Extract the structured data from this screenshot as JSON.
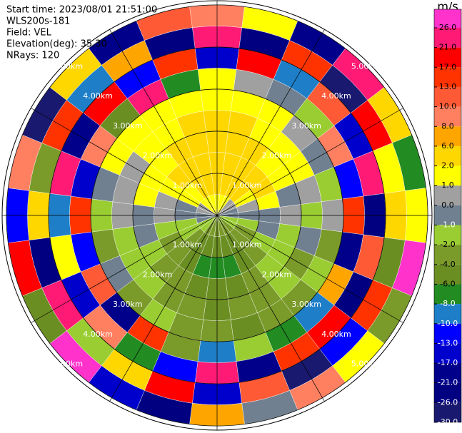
{
  "header": {
    "lines": [
      "Start time: 2023/08/01 21:51:00",
      "WLS200s-181",
      "Field: VEL",
      "Elevation(deg): 35.30",
      "NRays: 120"
    ]
  },
  "chart_data": {
    "type": "ppi",
    "azimuths": [
      0,
      15,
      30,
      45,
      60,
      75,
      90,
      105,
      120,
      135,
      150,
      165,
      180,
      195,
      210,
      225,
      240,
      255,
      270,
      285,
      300,
      315,
      330,
      345
    ],
    "ranges": [
      0.25,
      0.75,
      1.25,
      1.75,
      2.25,
      2.75,
      3.25,
      3.75,
      4.25,
      4.75
    ],
    "rlim": [
      0,
      5.1
    ],
    "values": [
      [
        1.5,
        4,
        5,
        3,
        2.5,
        1.5,
        1.5,
        -15,
        22,
        9
      ],
      [
        1.5,
        4,
        5,
        3,
        2.5,
        1.5,
        0.5,
        18,
        -25,
        1.5
      ],
      [
        1.5,
        3,
        4,
        2.5,
        1.5,
        1.5,
        -0.5,
        -9,
        15,
        -19
      ],
      [
        0.5,
        2.5,
        3,
        1.5,
        1.5,
        0.5,
        -1.5,
        12,
        -28,
        24
      ],
      [
        0.5,
        1.5,
        2.5,
        1.5,
        1.5,
        -0.5,
        9,
        -14,
        19,
        3
      ],
      [
        -0.5,
        0.5,
        1.5,
        -0.5,
        0.5,
        -1.5,
        -11,
        23,
        1.5,
        -7
      ],
      [
        -0.5,
        -0.5,
        -0.5,
        0.5,
        -1.5,
        0.5,
        14,
        -22,
        5,
        1.5
      ],
      [
        -1.5,
        -1.5,
        -0.5,
        -1.5,
        -0.5,
        -3,
        -18,
        11,
        -5,
        27
      ],
      [
        -1.5,
        -3,
        -1.5,
        -1.5,
        -3,
        -1.5,
        7,
        -24,
        16,
        -3
      ],
      [
        -3,
        -3,
        -3,
        -1.5,
        -1.5,
        -3,
        -9,
        20,
        -12,
        1.5
      ],
      [
        -3,
        -5,
        -5,
        -3,
        -3,
        -3,
        -7,
        15,
        -27,
        9
      ],
      [
        -3,
        -5,
        -7,
        -5,
        -3,
        -5,
        -1.5,
        -19,
        12,
        -0.5
      ],
      [
        -3,
        -5,
        -7,
        -5,
        -5,
        -3,
        -9,
        24,
        -15,
        7
      ],
      [
        -3,
        -5,
        -7,
        -5,
        -3,
        -3,
        -3,
        -11,
        19,
        -23
      ],
      [
        -3,
        -5,
        -5,
        -3,
        -3,
        -1.5,
        15,
        -7,
        3,
        -16
      ],
      [
        -1.5,
        -3,
        -3,
        -3,
        -1.5,
        -3,
        -20,
        9,
        -1.5,
        28
      ],
      [
        -1.5,
        -1.5,
        -3,
        -1.5,
        -1.5,
        -0.5,
        11,
        -17,
        23,
        -5
      ],
      [
        -0.5,
        -1.5,
        -1.5,
        -0.5,
        -1.5,
        -3,
        -12,
        1.5,
        -26,
        18
      ],
      [
        -0.5,
        -0.5,
        0.5,
        -0.5,
        0.5,
        -1.5,
        16,
        -9,
        5,
        -13
      ],
      [
        0.5,
        -0.5,
        0.5,
        1.5,
        0.5,
        -0.5,
        -14,
        24,
        -3,
        9
      ],
      [
        0.5,
        1.5,
        1.5,
        1.5,
        0.5,
        1.5,
        8,
        -19,
        13,
        -28
      ],
      [
        1.5,
        1.5,
        3,
        1.5,
        1.5,
        1.5,
        -6,
        18,
        -10,
        3
      ],
      [
        1.5,
        3,
        4,
        3,
        1.5,
        1.5,
        22,
        -13,
        7,
        -21
      ],
      [
        1.5,
        3,
        5,
        3,
        2.5,
        1.5,
        -8,
        14,
        -24,
        11
      ]
    ],
    "range_rings": [
      {
        "value": 1,
        "label": "1.00km"
      },
      {
        "value": 2,
        "label": "2.00km"
      },
      {
        "value": 3,
        "label": "3.00km"
      },
      {
        "value": 4,
        "label": "4.00km"
      },
      {
        "value": 5,
        "label": "5.00km"
      }
    ],
    "colorbar": {
      "label": "m/s",
      "ticks": [
        {
          "value": 26,
          "label": "26.0"
        },
        {
          "value": 21,
          "label": "21.0"
        },
        {
          "value": 17,
          "label": "17.0"
        },
        {
          "value": 13,
          "label": "13.0"
        },
        {
          "value": 10,
          "label": "10.0"
        },
        {
          "value": 8,
          "label": "8.0"
        },
        {
          "value": 6,
          "label": "6.0"
        },
        {
          "value": 2,
          "label": "2.0"
        },
        {
          "value": 1,
          "label": "1.0"
        },
        {
          "value": 0,
          "label": "0.0"
        },
        {
          "value": -1,
          "label": "-1.0"
        },
        {
          "value": -2,
          "label": "-2.0"
        },
        {
          "value": -4,
          "label": "-4.0"
        },
        {
          "value": -6,
          "label": "-6.0"
        },
        {
          "value": -8,
          "label": "-8.0"
        },
        {
          "value": -10,
          "label": "-10.0"
        },
        {
          "value": -13,
          "label": "-13.0"
        },
        {
          "value": -17,
          "label": "-17.0"
        },
        {
          "value": -21,
          "label": "-21.0"
        },
        {
          "value": -26,
          "label": "-26.0"
        },
        {
          "value": -30,
          "label": "-30.0"
        }
      ],
      "colors": [
        "#ff33cc",
        "#ff1a75",
        "#ff0000",
        "#ff3300",
        "#ff5a36",
        "#ff8060",
        "#ffa500",
        "#ffd700",
        "#ffff00",
        "#a0a0a0",
        "#708090",
        "#9acd32",
        "#7a9a2a",
        "#6b8e23",
        "#228b22",
        "#1e7fc8",
        "#0000ff",
        "#0000cd",
        "#00008b",
        "#000080",
        "#191970"
      ]
    }
  }
}
